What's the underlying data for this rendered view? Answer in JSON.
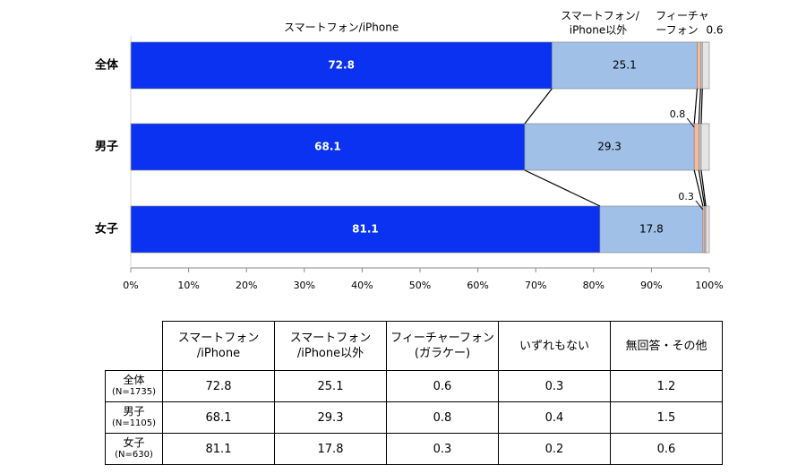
{
  "chart_data": {
    "type": "bar",
    "orientation": "horizontal",
    "stacked": true,
    "categories": [
      "全体",
      "男子",
      "女子"
    ],
    "series": [
      {
        "name": "スマートフォン/iPhone",
        "values": [
          72.8,
          68.1,
          81.1
        ],
        "color": "#0a32f0"
      },
      {
        "name": "スマートフォン/iPhone以外",
        "values": [
          25.1,
          29.3,
          17.8
        ],
        "color": "#a0c0e8"
      },
      {
        "name": "フィーチャーフォン",
        "values": [
          0.6,
          0.8,
          0.3
        ],
        "color": "#f8b89a"
      },
      {
        "name": "いずれもない",
        "values": [
          0.3,
          0.4,
          0.2
        ],
        "color": "#c8c8c8"
      },
      {
        "name": "無回答・その他",
        "values": [
          1.2,
          1.5,
          0.6
        ],
        "color": "#e4e4e4"
      }
    ],
    "xlim": [
      0,
      100
    ],
    "x_ticks": [
      "0%",
      "10%",
      "20%",
      "30%",
      "40%",
      "50%",
      "60%",
      "70%",
      "80%",
      "90%",
      "100%"
    ],
    "bar_labels": [
      [
        "72.8",
        "25.1",
        null
      ],
      [
        "68.1",
        "29.3",
        "0.8"
      ],
      [
        "81.1",
        "17.8",
        "0.3"
      ]
    ],
    "top_labels": {
      "smartphone_iphone": "スマートフォン/iPhone",
      "smartphone_other_line1": "スマートフォン/",
      "smartphone_other_line2": "iPhone以外",
      "feature_line1": "フィーチャ",
      "feature_line2": "ーフォン",
      "feature_value": "0.6"
    },
    "connector_lines": true,
    "grid": false,
    "legend": "none"
  },
  "table": {
    "headers": [
      [
        "スマートフォン",
        "/iPhone"
      ],
      [
        "スマートフォン",
        "/iPhone以外"
      ],
      [
        "フィーチャーフォン",
        "(ガラケー)"
      ],
      [
        "いずれもない"
      ],
      [
        "無回答・その他"
      ]
    ],
    "rows": [
      {
        "label": "全体",
        "n": "(N=1735)",
        "values": [
          "72.8",
          "25.1",
          "0.6",
          "0.3",
          "1.2"
        ]
      },
      {
        "label": "男子",
        "n": "(N=1105)",
        "values": [
          "68.1",
          "29.3",
          "0.8",
          "0.4",
          "1.5"
        ]
      },
      {
        "label": "女子",
        "n": "(N=630)",
        "values": [
          "81.1",
          "17.8",
          "0.3",
          "0.2",
          "0.6"
        ]
      }
    ]
  }
}
